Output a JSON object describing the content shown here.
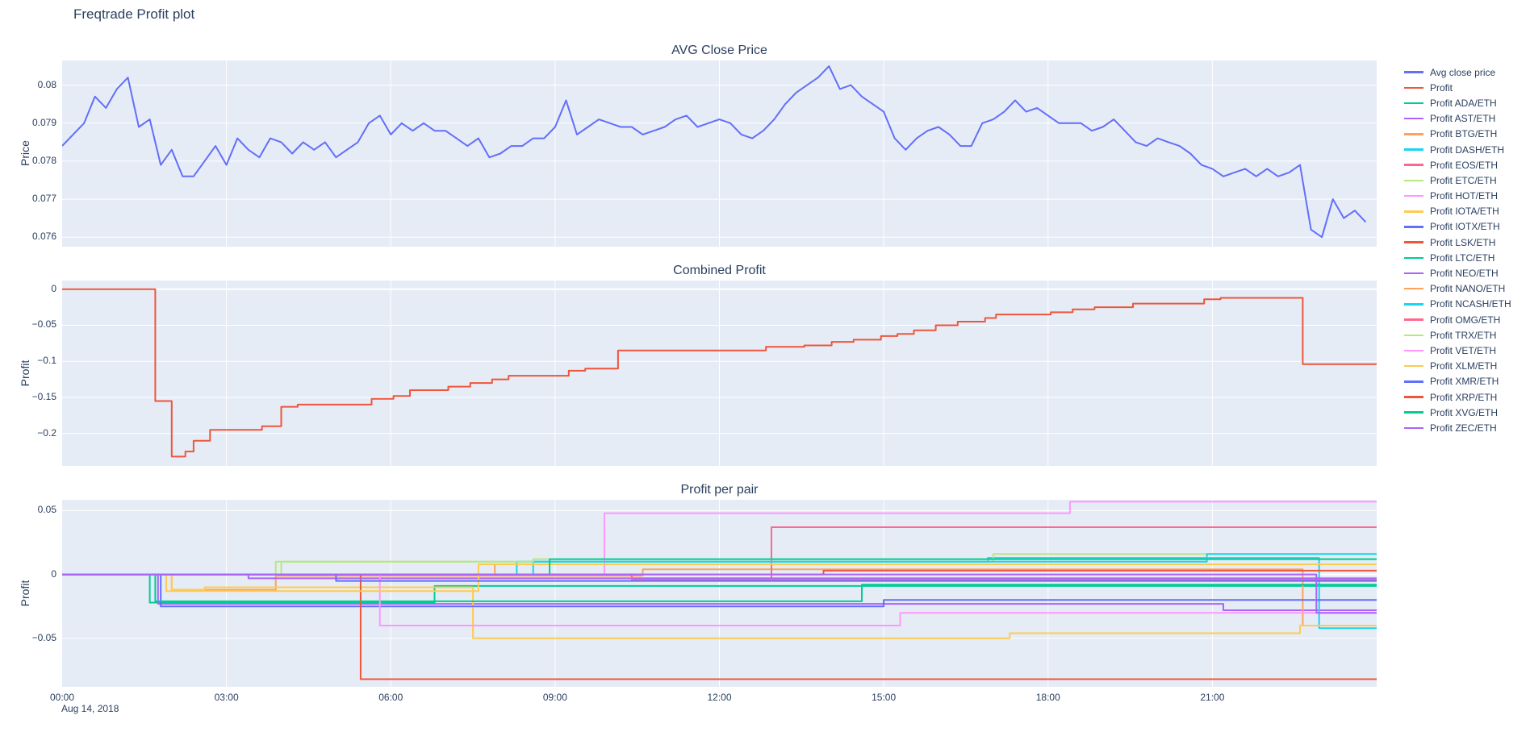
{
  "page": {
    "title": "Freqtrade Profit plot",
    "date_label": "Aug 14, 2018"
  },
  "colors": {
    "background": "#ffffff",
    "plot_bg": "#E5ECF6",
    "grid": "#ffffff",
    "text": "#2a3f5f"
  },
  "x_axis": {
    "range": [
      0,
      24
    ],
    "ticks": [
      0,
      3,
      6,
      9,
      12,
      15,
      18,
      21
    ],
    "labels": [
      "00:00",
      "03:00",
      "06:00",
      "09:00",
      "12:00",
      "15:00",
      "18:00",
      "21:00"
    ]
  },
  "chart_data": [
    {
      "type": "line",
      "title": "AVG Close Price",
      "ylabel": "Price",
      "ylim": [
        0.07575,
        0.08065
      ],
      "yticks": [
        {
          "v": 0.076,
          "label": "0.076"
        },
        {
          "v": 0.077,
          "label": "0.077"
        },
        {
          "v": 0.078,
          "label": "0.078"
        },
        {
          "v": 0.079,
          "label": "0.079"
        },
        {
          "v": 0.08,
          "label": "0.08"
        }
      ],
      "series": [
        {
          "name": "Avg close price",
          "color": "#636efa",
          "x_start": 0,
          "x_step": 0.2,
          "values": [
            0.0784,
            0.0787,
            0.079,
            0.0797,
            0.0794,
            0.0799,
            0.0802,
            0.0789,
            0.0791,
            0.0779,
            0.0783,
            0.0776,
            0.0776,
            0.078,
            0.0784,
            0.0779,
            0.0786,
            0.0783,
            0.0781,
            0.0786,
            0.0785,
            0.0782,
            0.0785,
            0.0783,
            0.0785,
            0.0781,
            0.0783,
            0.0785,
            0.079,
            0.0792,
            0.0787,
            0.079,
            0.0788,
            0.079,
            0.0788,
            0.0788,
            0.0786,
            0.0784,
            0.0786,
            0.0781,
            0.0782,
            0.0784,
            0.0784,
            0.0786,
            0.0786,
            0.0789,
            0.0796,
            0.0787,
            0.0789,
            0.0791,
            0.079,
            0.0789,
            0.0789,
            0.0787,
            0.0788,
            0.0789,
            0.0791,
            0.0792,
            0.0789,
            0.079,
            0.0791,
            0.079,
            0.0787,
            0.0786,
            0.0788,
            0.0791,
            0.0795,
            0.0798,
            0.08,
            0.0802,
            0.0805,
            0.0799,
            0.08,
            0.0797,
            0.0795,
            0.0793,
            0.0786,
            0.0783,
            0.0786,
            0.0788,
            0.0789,
            0.0787,
            0.0784,
            0.0784,
            0.079,
            0.0791,
            0.0793,
            0.0796,
            0.0793,
            0.0794,
            0.0792,
            0.079,
            0.079,
            0.079,
            0.0788,
            0.0789,
            0.0791,
            0.0788,
            0.0785,
            0.0784,
            0.0786,
            0.0785,
            0.0784,
            0.0782,
            0.0779,
            0.0778,
            0.0776,
            0.0777,
            0.0778,
            0.0776,
            0.0778,
            0.0776,
            0.0777,
            0.0779,
            0.0762,
            0.076,
            0.077,
            0.0765,
            0.0767,
            0.0764
          ]
        }
      ]
    },
    {
      "type": "line-step",
      "title": "Combined Profit",
      "ylabel": "Profit",
      "ylim": [
        -0.245,
        0.012
      ],
      "yticks": [
        {
          "v": 0,
          "label": "0"
        },
        {
          "v": -0.05,
          "label": "−0.05"
        },
        {
          "v": -0.1,
          "label": "−0.1"
        },
        {
          "v": -0.15,
          "label": "−0.15"
        },
        {
          "v": -0.2,
          "label": "−0.2"
        }
      ],
      "series": [
        {
          "name": "Profit",
          "color": "#EF553B",
          "points": [
            [
              0,
              0
            ],
            [
              1.7,
              -0.155
            ],
            [
              2.0,
              -0.232
            ],
            [
              2.25,
              -0.225
            ],
            [
              2.4,
              -0.21
            ],
            [
              2.7,
              -0.195
            ],
            [
              3.65,
              -0.19
            ],
            [
              4.0,
              -0.163
            ],
            [
              4.3,
              -0.16
            ],
            [
              5.65,
              -0.152
            ],
            [
              6.05,
              -0.148
            ],
            [
              6.35,
              -0.14
            ],
            [
              7.05,
              -0.135
            ],
            [
              7.45,
              -0.13
            ],
            [
              7.85,
              -0.125
            ],
            [
              8.15,
              -0.12
            ],
            [
              9.25,
              -0.113
            ],
            [
              9.55,
              -0.11
            ],
            [
              10.15,
              -0.085
            ],
            [
              12.85,
              -0.08
            ],
            [
              13.55,
              -0.078
            ],
            [
              14.05,
              -0.073
            ],
            [
              14.45,
              -0.07
            ],
            [
              14.95,
              -0.065
            ],
            [
              15.25,
              -0.062
            ],
            [
              15.55,
              -0.057
            ],
            [
              15.95,
              -0.05
            ],
            [
              16.35,
              -0.045
            ],
            [
              16.85,
              -0.04
            ],
            [
              17.05,
              -0.035
            ],
            [
              18.05,
              -0.032
            ],
            [
              18.45,
              -0.028
            ],
            [
              18.85,
              -0.025
            ],
            [
              19.55,
              -0.02
            ],
            [
              20.85,
              -0.014
            ],
            [
              21.15,
              -0.012
            ],
            [
              22.65,
              -0.104
            ]
          ]
        }
      ]
    },
    {
      "type": "line-step",
      "title": "Profit per pair",
      "ylabel": "Profit",
      "ylim": [
        -0.088,
        0.0585
      ],
      "yticks": [
        {
          "v": 0.05,
          "label": "0.05"
        },
        {
          "v": 0,
          "label": "0"
        },
        {
          "v": -0.05,
          "label": "−0.05"
        }
      ],
      "series": [
        {
          "name": "Profit ADA/ETH",
          "color": "#00cc96",
          "points": [
            [
              0,
              0
            ],
            [
              1.6,
              -0.022
            ],
            [
              6.8,
              -0.009
            ]
          ]
        },
        {
          "name": "Profit AST/ETH",
          "color": "#ab63fa",
          "points": [
            [
              0,
              0
            ],
            [
              1.75,
              -0.023
            ],
            [
              21.2,
              -0.028
            ]
          ]
        },
        {
          "name": "Profit BTG/ETH",
          "color": "#FFA15A",
          "points": [
            [
              0,
              0
            ],
            [
              2.0,
              -0.012
            ],
            [
              3.9,
              -0.001
            ],
            [
              10.6,
              0.004
            ],
            [
              22.65,
              -0.04
            ]
          ]
        },
        {
          "name": "Profit DASH/ETH",
          "color": "#19d3f3",
          "points": [
            [
              0,
              0
            ],
            [
              8.6,
              0.01
            ],
            [
              16.9,
              0.013
            ],
            [
              22.95,
              -0.042
            ]
          ]
        },
        {
          "name": "Profit EOS/ETH",
          "color": "#FF6692",
          "points": [
            [
              0,
              0
            ],
            [
              10.4,
              -0.003
            ],
            [
              12.95,
              0.037
            ]
          ]
        },
        {
          "name": "Profit ETC/ETH",
          "color": "#B6E880",
          "points": [
            [
              0,
              0
            ],
            [
              4.0,
              0.01
            ],
            [
              17.0,
              0.016
            ]
          ]
        },
        {
          "name": "Profit HOT/ETH",
          "color": "#FF97FF",
          "points": [
            [
              0,
              0
            ],
            [
              9.9,
              0.048
            ],
            [
              18.4,
              0.057
            ]
          ]
        },
        {
          "name": "Profit IOTA/ETH",
          "color": "#FECB52",
          "points": [
            [
              0,
              0
            ],
            [
              2.0,
              -0.012
            ],
            [
              2.6,
              -0.01
            ],
            [
              7.5,
              -0.05
            ],
            [
              17.3,
              -0.046
            ],
            [
              22.6,
              -0.04
            ]
          ]
        },
        {
          "name": "Profit IOTX/ETH",
          "color": "#636efa",
          "points": [
            [
              0,
              0
            ],
            [
              1.8,
              -0.025
            ],
            [
              15.0,
              -0.02
            ]
          ]
        },
        {
          "name": "Profit LSK/ETH",
          "color": "#EF553B",
          "points": [
            [
              0,
              0
            ],
            [
              5.45,
              -0.082
            ]
          ]
        },
        {
          "name": "Profit LTC/ETH",
          "color": "#00cc96",
          "points": [
            [
              0,
              0
            ],
            [
              1.7,
              -0.021
            ],
            [
              14.6,
              -0.008
            ]
          ]
        },
        {
          "name": "Profit NEO/ETH",
          "color": "#ab63fa",
          "points": [
            [
              0,
              0
            ],
            [
              3.4,
              -0.003
            ]
          ]
        },
        {
          "name": "Profit NANO/ETH",
          "color": "#FFA15A",
          "points": [
            [
              0,
              0
            ],
            [
              7.9,
              0.008
            ]
          ]
        },
        {
          "name": "Profit NCASH/ETH",
          "color": "#19d3f3",
          "points": [
            [
              0,
              0
            ],
            [
              8.3,
              0.01
            ],
            [
              20.9,
              0.016
            ]
          ]
        },
        {
          "name": "Profit OMG/ETH",
          "color": "#FF6692",
          "points": [
            [
              0,
              0
            ],
            [
              10.4,
              -0.004
            ]
          ]
        },
        {
          "name": "Profit TRX/ETH",
          "color": "#B6E880",
          "points": [
            [
              0,
              0
            ],
            [
              3.9,
              0.01
            ],
            [
              8.6,
              0.012
            ]
          ]
        },
        {
          "name": "Profit VET/ETH",
          "color": "#FF97FF",
          "points": [
            [
              0,
              0
            ],
            [
              5.8,
              -0.04
            ],
            [
              15.3,
              -0.03
            ]
          ]
        },
        {
          "name": "Profit XLM/ETH",
          "color": "#FECB52",
          "points": [
            [
              0,
              0
            ],
            [
              1.9,
              -0.013
            ],
            [
              7.6,
              0.008
            ]
          ]
        },
        {
          "name": "Profit XMR/ETH",
          "color": "#636efa",
          "points": [
            [
              0,
              0
            ],
            [
              5.0,
              -0.005
            ]
          ]
        },
        {
          "name": "Profit XRP/ETH",
          "color": "#EF553B",
          "points": [
            [
              0,
              0
            ],
            [
              13.9,
              0.003
            ]
          ]
        },
        {
          "name": "Profit XVG/ETH",
          "color": "#00cc96",
          "points": [
            [
              0,
              0
            ],
            [
              8.9,
              0.012
            ]
          ]
        },
        {
          "name": "Profit ZEC/ETH",
          "color": "#ab63fa",
          "points": [
            [
              0,
              0
            ],
            [
              22.9,
              -0.03
            ]
          ]
        }
      ]
    }
  ],
  "legend": {
    "items": [
      {
        "label": "Avg close price",
        "color": "#636efa"
      },
      {
        "label": "Profit",
        "color": "#EF553B"
      },
      {
        "label": "Profit ADA/ETH",
        "color": "#00cc96"
      },
      {
        "label": "Profit AST/ETH",
        "color": "#ab63fa"
      },
      {
        "label": "Profit BTG/ETH",
        "color": "#FFA15A"
      },
      {
        "label": "Profit DASH/ETH",
        "color": "#19d3f3"
      },
      {
        "label": "Profit EOS/ETH",
        "color": "#FF6692"
      },
      {
        "label": "Profit ETC/ETH",
        "color": "#B6E880"
      },
      {
        "label": "Profit HOT/ETH",
        "color": "#FF97FF"
      },
      {
        "label": "Profit IOTA/ETH",
        "color": "#FECB52"
      },
      {
        "label": "Profit IOTX/ETH",
        "color": "#636efa"
      },
      {
        "label": "Profit LSK/ETH",
        "color": "#EF553B"
      },
      {
        "label": "Profit LTC/ETH",
        "color": "#00cc96"
      },
      {
        "label": "Profit NEO/ETH",
        "color": "#ab63fa"
      },
      {
        "label": "Profit NANO/ETH",
        "color": "#FFA15A"
      },
      {
        "label": "Profit NCASH/ETH",
        "color": "#19d3f3"
      },
      {
        "label": "Profit OMG/ETH",
        "color": "#FF6692"
      },
      {
        "label": "Profit TRX/ETH",
        "color": "#B6E880"
      },
      {
        "label": "Profit VET/ETH",
        "color": "#FF97FF"
      },
      {
        "label": "Profit XLM/ETH",
        "color": "#FECB52"
      },
      {
        "label": "Profit XMR/ETH",
        "color": "#636efa"
      },
      {
        "label": "Profit XRP/ETH",
        "color": "#EF553B"
      },
      {
        "label": "Profit XVG/ETH",
        "color": "#00cc96"
      },
      {
        "label": "Profit ZEC/ETH",
        "color": "#ab63fa"
      }
    ]
  }
}
